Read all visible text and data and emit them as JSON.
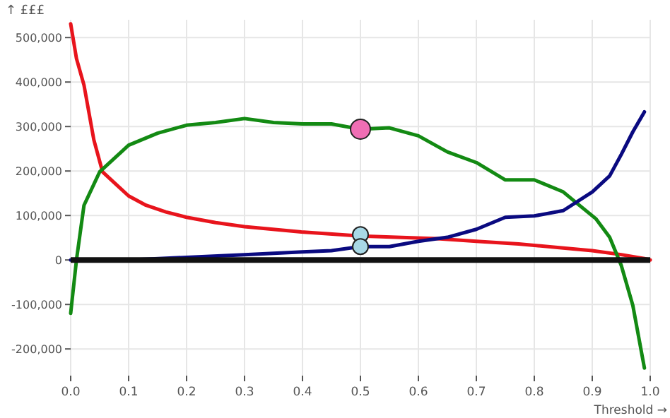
{
  "chart_data": {
    "type": "line",
    "xlabel": "Threshold →",
    "ylabel": "↑ £££",
    "xlim": [
      0,
      1
    ],
    "ylim": [
      -260000,
      540000
    ],
    "xticks": [
      {
        "value": 0,
        "label": "0.0"
      },
      {
        "value": 0.1,
        "label": "0.1"
      },
      {
        "value": 0.2,
        "label": "0.2"
      },
      {
        "value": 0.3,
        "label": "0.3"
      },
      {
        "value": 0.4,
        "label": "0.4"
      },
      {
        "value": 0.5,
        "label": "0.5"
      },
      {
        "value": 0.6,
        "label": "0.6"
      },
      {
        "value": 0.7,
        "label": "0.7"
      },
      {
        "value": 0.8,
        "label": "0.8"
      },
      {
        "value": 0.9,
        "label": "0.9"
      },
      {
        "value": 1,
        "label": "1.0"
      }
    ],
    "yticks": [
      {
        "value": -200000,
        "label": "-200,000"
      },
      {
        "value": -100000,
        "label": "-100,000"
      },
      0,
      {
        "value": 100000,
        "label": "100,000"
      },
      {
        "value": 200000,
        "label": "200,000"
      },
      {
        "value": 300000,
        "label": "300,000"
      },
      {
        "value": 400000,
        "label": "400,000"
      },
      {
        "value": 500000,
        "label": "500,000"
      }
    ],
    "grid": true,
    "marker": "none",
    "ref_lines": [
      {
        "axis": "y",
        "value": 0,
        "color": "#111111"
      }
    ],
    "series": [
      {
        "color": "#e8141c",
        "x": [
          0,
          0.01,
          0.023,
          0.04,
          0.055,
          0.08,
          0.1,
          0.13,
          0.164,
          0.2,
          0.25,
          0.3,
          0.398,
          0.5,
          0.633,
          0.7,
          0.773,
          0.85,
          0.9,
          0.95,
          0.99,
          1
        ],
        "values": [
          531000,
          453000,
          393000,
          270000,
          198000,
          168000,
          144000,
          123000,
          108000,
          96000,
          84000,
          75000,
          63000,
          54000,
          48000,
          42000,
          36000,
          27000,
          21000,
          12000,
          3000,
          0
        ]
      },
      {
        "color": "#138a13",
        "x": [
          0,
          0.01,
          0.023,
          0.05,
          0.1,
          0.15,
          0.2,
          0.25,
          0.3,
          0.35,
          0.4,
          0.45,
          0.5,
          0.55,
          0.6,
          0.65,
          0.7,
          0.75,
          0.8,
          0.85,
          0.875,
          0.906,
          0.93,
          0.95,
          0.97,
          0.99
        ],
        "values": [
          -120000,
          0,
          123000,
          198000,
          258000,
          285000,
          303000,
          309000,
          318000,
          309000,
          306000,
          306000,
          294000,
          297000,
          279000,
          243000,
          219000,
          180000,
          180000,
          153000,
          126000,
          93000,
          51000,
          -12000,
          -102000,
          -243000
        ]
      },
      {
        "color": "#0a0a80",
        "x": [
          0,
          0.05,
          0.1,
          0.2,
          0.3,
          0.35,
          0.4,
          0.45,
          0.5,
          0.55,
          0.6,
          0.65,
          0.7,
          0.75,
          0.8,
          0.85,
          0.9,
          0.93,
          0.95,
          0.97,
          0.99
        ],
        "values": [
          0,
          0,
          0,
          6000,
          12000,
          15000,
          18000,
          21000,
          30000,
          30000,
          42000,
          51000,
          69000,
          96000,
          99000,
          111000,
          153000,
          189000,
          237000,
          288000,
          333000
        ]
      },
      {
        "type": "scatter",
        "marker": "circle",
        "color": "#f06eb4",
        "x": [
          0.5
        ],
        "values": [
          294000
        ]
      },
      {
        "type": "scatter",
        "marker": "circle",
        "color": "#a8d8e6",
        "x": [
          0.5,
          0.5
        ],
        "values": [
          57000,
          30000
        ]
      }
    ]
  }
}
